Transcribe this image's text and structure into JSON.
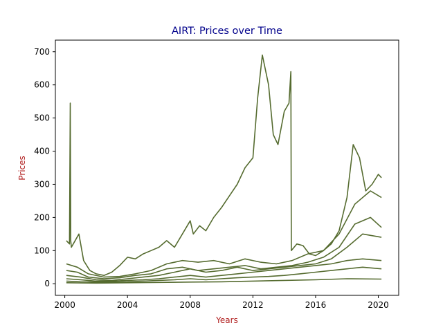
{
  "chart_data": {
    "type": "line",
    "title": "AIRT: Prices over Time",
    "xlabel": "Years",
    "ylabel": "Prices",
    "xlim": [
      1999.4,
      2021.3
    ],
    "ylim": [
      -35,
      735
    ],
    "x_ticks": [
      2000,
      2004,
      2008,
      2012,
      2016,
      2020
    ],
    "x_tick_labels": [
      "2000",
      "2004",
      "2008",
      "2012",
      "2016",
      "2020"
    ],
    "y_ticks": [
      0,
      100,
      200,
      300,
      400,
      500,
      600,
      700
    ],
    "y_tick_labels": [
      "0",
      "100",
      "200",
      "300",
      "400",
      "500",
      "600",
      "700"
    ],
    "grid": false,
    "colors": {
      "series": "#556B2F",
      "title": "#00008B",
      "axis_label": "#B22222"
    },
    "series": [
      {
        "x": [
          2000.1,
          2000.3,
          2000.35,
          2000.38,
          2000.42,
          2000.6,
          2000.9,
          2001.2,
          2001.6,
          2002.0,
          2002.5,
          2003.0,
          2003.5,
          2004.0,
          2004.5,
          2005.0,
          2005.5,
          2006.0,
          2006.5,
          2007.0,
          2007.5,
          2008.0,
          2008.2,
          2008.6,
          2009.0,
          2009.5,
          2010.0,
          2010.5,
          2011.0,
          2011.5,
          2012.0,
          2012.3,
          2012.6,
          2013.0,
          2013.3,
          2013.6,
          2014.0,
          2014.3,
          2014.42,
          2014.45,
          2014.8,
          2015.2,
          2015.6,
          2016.0,
          2016.5,
          2017.0,
          2017.5,
          2018.0,
          2018.4,
          2018.8,
          2019.2,
          2019.6,
          2020.0,
          2020.2
        ],
        "y": [
          130,
          120,
          545,
          130,
          110,
          125,
          150,
          70,
          40,
          30,
          25,
          35,
          55,
          80,
          75,
          90,
          100,
          110,
          130,
          110,
          150,
          190,
          150,
          175,
          160,
          200,
          230,
          265,
          300,
          350,
          380,
          560,
          690,
          600,
          450,
          420,
          520,
          545,
          640,
          100,
          120,
          115,
          90,
          85,
          100,
          120,
          160,
          260,
          420,
          380,
          280,
          300,
          330,
          320
        ]
      },
      {
        "x": [
          2000.1,
          2000.8,
          2001.5,
          2002.5,
          2003.5,
          2004.5,
          2005.5,
          2006.5,
          2007.5,
          2008.5,
          2009.5,
          2010.5,
          2011.5,
          2012.5,
          2013.5,
          2014.5,
          2015.5,
          2016.5,
          2017.5,
          2018.5,
          2019.5,
          2020.2
        ],
        "y": [
          60,
          50,
          30,
          20,
          22,
          30,
          40,
          60,
          70,
          65,
          70,
          60,
          75,
          65,
          60,
          70,
          90,
          100,
          150,
          240,
          280,
          260
        ]
      },
      {
        "x": [
          2000.1,
          2000.8,
          2001.5,
          2002.5,
          2003.5,
          2004.5,
          2005.5,
          2006.5,
          2007.5,
          2008.5,
          2009.5,
          2010.5,
          2011.5,
          2012.5,
          2013.5,
          2014.5,
          2015.5,
          2016.5,
          2017.5,
          2018.5,
          2019.5,
          2020.2
        ],
        "y": [
          40,
          35,
          20,
          15,
          18,
          25,
          30,
          45,
          50,
          40,
          45,
          50,
          55,
          45,
          50,
          55,
          65,
          80,
          110,
          180,
          200,
          170
        ]
      },
      {
        "x": [
          2000.1,
          2001.0,
          2002.0,
          2003.0,
          2004.0,
          2005.0,
          2006.0,
          2007.0,
          2008.0,
          2009.0,
          2010.0,
          2011.0,
          2012.0,
          2013.0,
          2014.0,
          2015.0,
          2016.0,
          2017.0,
          2018.0,
          2019.0,
          2020.2
        ],
        "y": [
          25,
          20,
          12,
          10,
          15,
          20,
          25,
          35,
          45,
          35,
          40,
          50,
          40,
          45,
          50,
          55,
          60,
          75,
          110,
          150,
          140
        ]
      },
      {
        "x": [
          2000.1,
          2001.0,
          2002.0,
          2003.0,
          2004.0,
          2005.0,
          2006.0,
          2007.0,
          2008.0,
          2009.0,
          2010.0,
          2011.0,
          2012.0,
          2013.0,
          2014.0,
          2015.0,
          2016.0,
          2017.0,
          2018.0,
          2019.0,
          2020.2
        ],
        "y": [
          15,
          12,
          8,
          8,
          10,
          12,
          15,
          20,
          25,
          20,
          25,
          30,
          35,
          40,
          45,
          50,
          55,
          60,
          70,
          75,
          70
        ]
      },
      {
        "x": [
          2000.1,
          2001.0,
          2002.0,
          2003.0,
          2004.0,
          2005.0,
          2006.0,
          2007.0,
          2008.0,
          2009.0,
          2010.0,
          2011.0,
          2012.0,
          2013.0,
          2014.0,
          2015.0,
          2016.0,
          2017.0,
          2018.0,
          2019.0,
          2020.2
        ],
        "y": [
          8,
          6,
          5,
          5,
          6,
          8,
          10,
          12,
          15,
          12,
          15,
          18,
          20,
          22,
          25,
          30,
          35,
          40,
          45,
          50,
          45
        ]
      },
      {
        "x": [
          2000.1,
          2002.0,
          2004.0,
          2006.0,
          2008.0,
          2010.0,
          2012.0,
          2014.0,
          2016.0,
          2018.0,
          2020.2
        ],
        "y": [
          3,
          2,
          3,
          4,
          5,
          6,
          8,
          10,
          12,
          15,
          14
        ]
      }
    ]
  }
}
